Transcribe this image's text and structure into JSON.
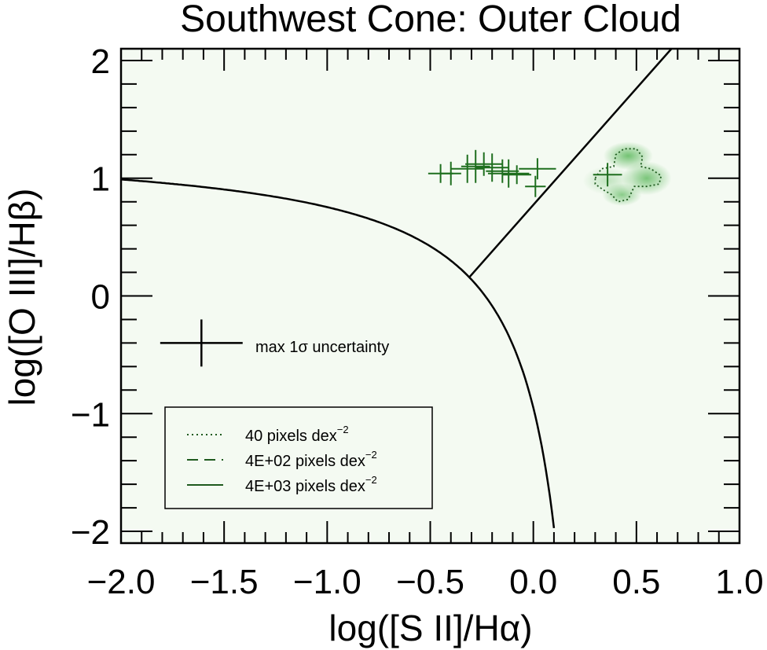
{
  "chart_data": {
    "type": "scatter",
    "title": "Southwest Cone: Outer Cloud",
    "xlabel": "log([S II]/Hα)",
    "ylabel": "log([O III]/Hβ)",
    "xlim": [
      -2.0,
      1.0
    ],
    "ylim": [
      -2.1,
      2.1
    ],
    "x_ticks": [
      "−2.0",
      "−1.5",
      "−1.0",
      "−0.5",
      "0.0",
      "0.5",
      "1.0"
    ],
    "x_tick_values": [
      -2.0,
      -1.5,
      -1.0,
      -0.5,
      0.0,
      0.5,
      1.0
    ],
    "y_ticks": [
      "2",
      "1",
      "0",
      "−1",
      "−2"
    ],
    "y_tick_values": [
      2,
      1,
      0,
      -1,
      -2
    ],
    "colors": {
      "points": "#1e6e1e",
      "contour": "#1e5a1e",
      "plot_background": "#f4faf2",
      "density": "#5cb85c",
      "lines": "#000000"
    },
    "demarcation_curve": {
      "formula": "y = 0.72 / (x - 0.32) + 1.30",
      "x_range": [
        -2.0,
        0.1
      ]
    },
    "liner_line": {
      "points": [
        [
          -0.31,
          0.16
        ],
        [
          0.67,
          2.1
        ]
      ]
    },
    "points": [
      {
        "x": -0.45,
        "y": 1.04,
        "xerr": 0.06,
        "yerr": 0.08
      },
      {
        "x": -0.4,
        "y": 1.04,
        "xerr": 0.05,
        "yerr": 0.1
      },
      {
        "x": -0.32,
        "y": 1.08,
        "xerr": 0.08,
        "yerr": 0.12
      },
      {
        "x": -0.28,
        "y": 1.1,
        "xerr": 0.07,
        "yerr": 0.14
      },
      {
        "x": -0.24,
        "y": 1.12,
        "xerr": 0.09,
        "yerr": 0.1
      },
      {
        "x": -0.2,
        "y": 1.09,
        "xerr": 0.08,
        "yerr": 0.12
      },
      {
        "x": -0.15,
        "y": 1.06,
        "xerr": 0.08,
        "yerr": 0.1
      },
      {
        "x": -0.12,
        "y": 1.04,
        "xerr": 0.1,
        "yerr": 0.12
      },
      {
        "x": -0.08,
        "y": 1.03,
        "xerr": 0.07,
        "yerr": 0.08
      },
      {
        "x": 0.02,
        "y": 1.08,
        "xerr": 0.09,
        "yerr": 0.09
      },
      {
        "x": 0.01,
        "y": 0.93,
        "xerr": 0.05,
        "yerr": 0.09
      },
      {
        "x": 0.36,
        "y": 1.03,
        "xerr": 0.07,
        "yerr": 0.1
      }
    ],
    "density_blobs": [
      {
        "x": 0.46,
        "y": 1.19,
        "sx": 0.05,
        "sy": 0.05,
        "amp": 0.85
      },
      {
        "x": 0.55,
        "y": 1.0,
        "sx": 0.05,
        "sy": 0.06,
        "amp": 0.8
      },
      {
        "x": 0.43,
        "y": 0.86,
        "sx": 0.04,
        "sy": 0.04,
        "amp": 0.7
      },
      {
        "x": 0.36,
        "y": 0.98,
        "sx": 0.05,
        "sy": 0.05,
        "amp": 0.35
      }
    ],
    "uncertainty_cross": {
      "label": "max 1σ uncertainty",
      "x": -1.61,
      "y": -0.4,
      "xerr": 0.2,
      "yerr": 0.2
    },
    "legend": {
      "placement": "bottom-left",
      "entries": [
        {
          "style": "dotted",
          "label": "40 pixels dex",
          "sup": "−2"
        },
        {
          "style": "dashed",
          "label": "4E+02 pixels dex",
          "sup": "−2"
        },
        {
          "style": "solid",
          "label": "4E+03 pixels dex",
          "sup": "−2"
        }
      ]
    }
  }
}
